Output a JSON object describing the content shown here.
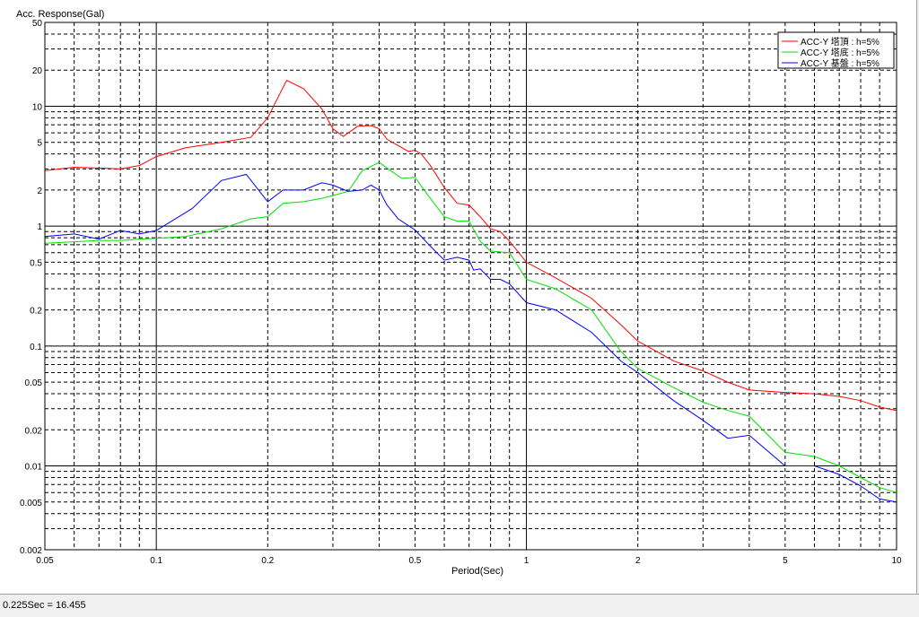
{
  "window": {
    "status_text": "0.225Sec = 16.455"
  },
  "chart_data": {
    "type": "line",
    "title": "",
    "ylabel": "Acc. Response(Gal)",
    "xlabel": "Period(Sec)",
    "x_scale": "log",
    "y_scale": "log",
    "xlim": [
      0.05,
      10
    ],
    "ylim": [
      0.002,
      50
    ],
    "grid": true,
    "legend_position": "top-right",
    "x_tick_labels": [
      "0.05",
      "0.1",
      "0.2",
      "0.5",
      "1",
      "2",
      "5",
      "10"
    ],
    "y_tick_labels": [
      "0.002",
      "0.005",
      "0.01",
      "0.02",
      "0.05",
      "0.1",
      "0.2",
      "0.5",
      "1",
      "2",
      "5",
      "10",
      "20",
      "50"
    ],
    "series": [
      {
        "name": "ACC-Y 塔頂 : h=5%",
        "color": "#ff0000",
        "points": [
          [
            0.05,
            2.9
          ],
          [
            0.06,
            3.1
          ],
          [
            0.07,
            3.05
          ],
          [
            0.08,
            3.0
          ],
          [
            0.09,
            3.2
          ],
          [
            0.1,
            3.8
          ],
          [
            0.12,
            4.5
          ],
          [
            0.15,
            5.0
          ],
          [
            0.18,
            5.5
          ],
          [
            0.2,
            8.0
          ],
          [
            0.225,
            16.455
          ],
          [
            0.25,
            14.0
          ],
          [
            0.28,
            9.5
          ],
          [
            0.3,
            6.5
          ],
          [
            0.32,
            5.6
          ],
          [
            0.35,
            6.8
          ],
          [
            0.38,
            6.9
          ],
          [
            0.4,
            6.5
          ],
          [
            0.42,
            5.3
          ],
          [
            0.45,
            4.7
          ],
          [
            0.48,
            4.2
          ],
          [
            0.5,
            4.3
          ],
          [
            0.52,
            4.0
          ],
          [
            0.55,
            3.2
          ],
          [
            0.6,
            2.1
          ],
          [
            0.65,
            1.55
          ],
          [
            0.7,
            1.5
          ],
          [
            0.75,
            1.2
          ],
          [
            0.8,
            0.95
          ],
          [
            0.85,
            0.9
          ],
          [
            0.9,
            0.75
          ],
          [
            1.0,
            0.5
          ],
          [
            1.2,
            0.37
          ],
          [
            1.5,
            0.25
          ],
          [
            1.8,
            0.15
          ],
          [
            2.0,
            0.11
          ],
          [
            2.5,
            0.075
          ],
          [
            3.0,
            0.062
          ],
          [
            3.5,
            0.05
          ],
          [
            4.0,
            0.043
          ],
          [
            5.0,
            0.041
          ],
          [
            6.0,
            0.04
          ],
          [
            7.0,
            0.038
          ],
          [
            8.0,
            0.035
          ],
          [
            9.0,
            0.031
          ],
          [
            10.0,
            0.029
          ]
        ]
      },
      {
        "name": "ACC-Y 塔底 : h=5%",
        "color": "#00e000",
        "points": [
          [
            0.05,
            0.72
          ],
          [
            0.06,
            0.74
          ],
          [
            0.07,
            0.76
          ],
          [
            0.08,
            0.76
          ],
          [
            0.09,
            0.78
          ],
          [
            0.1,
            0.79
          ],
          [
            0.12,
            0.82
          ],
          [
            0.15,
            0.95
          ],
          [
            0.18,
            1.15
          ],
          [
            0.2,
            1.2
          ],
          [
            0.22,
            1.55
          ],
          [
            0.25,
            1.6
          ],
          [
            0.28,
            1.7
          ],
          [
            0.3,
            1.8
          ],
          [
            0.33,
            1.95
          ],
          [
            0.36,
            2.9
          ],
          [
            0.4,
            3.4
          ],
          [
            0.43,
            2.9
          ],
          [
            0.46,
            2.5
          ],
          [
            0.5,
            2.55
          ],
          [
            0.55,
            1.7
          ],
          [
            0.6,
            1.2
          ],
          [
            0.65,
            1.1
          ],
          [
            0.7,
            1.1
          ],
          [
            0.75,
            0.75
          ],
          [
            0.8,
            0.62
          ],
          [
            0.9,
            0.6
          ],
          [
            1.0,
            0.36
          ],
          [
            1.2,
            0.3
          ],
          [
            1.5,
            0.2
          ],
          [
            1.8,
            0.09
          ],
          [
            2.0,
            0.065
          ],
          [
            2.5,
            0.045
          ],
          [
            3.0,
            0.034
          ],
          [
            3.5,
            0.029
          ],
          [
            4.0,
            0.026
          ],
          [
            5.0,
            0.013
          ],
          [
            6.0,
            0.012
          ],
          [
            7.0,
            0.01
          ],
          [
            8.0,
            0.008
          ],
          [
            9.0,
            0.0066
          ],
          [
            10.0,
            0.006
          ]
        ]
      },
      {
        "name": "ACC-Y 基盤 : h=5%",
        "color": "#0000ff",
        "points": [
          [
            0.05,
            0.82
          ],
          [
            0.06,
            0.86
          ],
          [
            0.07,
            0.78
          ],
          [
            0.08,
            0.92
          ],
          [
            0.09,
            0.86
          ],
          [
            0.1,
            0.92
          ],
          [
            0.125,
            1.4
          ],
          [
            0.15,
            2.4
          ],
          [
            0.175,
            2.7
          ],
          [
            0.2,
            1.6
          ],
          [
            0.22,
            2.0
          ],
          [
            0.25,
            2.0
          ],
          [
            0.28,
            2.3
          ],
          [
            0.3,
            2.2
          ],
          [
            0.33,
            1.95
          ],
          [
            0.36,
            2.0
          ],
          [
            0.38,
            2.2
          ],
          [
            0.4,
            2.0
          ],
          [
            0.42,
            1.5
          ],
          [
            0.45,
            1.15
          ],
          [
            0.5,
            0.93
          ],
          [
            0.55,
            0.68
          ],
          [
            0.6,
            0.52
          ],
          [
            0.65,
            0.55
          ],
          [
            0.7,
            0.52
          ],
          [
            0.72,
            0.43
          ],
          [
            0.75,
            0.44
          ],
          [
            0.8,
            0.36
          ],
          [
            0.85,
            0.36
          ],
          [
            0.9,
            0.33
          ],
          [
            1.0,
            0.23
          ],
          [
            1.2,
            0.2
          ],
          [
            1.5,
            0.13
          ],
          [
            1.8,
            0.075
          ],
          [
            2.0,
            0.06
          ],
          [
            2.5,
            0.035
          ],
          [
            3.0,
            0.024
          ],
          [
            3.5,
            0.017
          ],
          [
            4.0,
            0.018
          ],
          [
            5.0,
            0.01
          ],
          [
            6.0,
            0.01
          ],
          [
            7.0,
            0.0085
          ],
          [
            8.0,
            0.0068
          ],
          [
            9.0,
            0.0053
          ],
          [
            10.0,
            0.005
          ]
        ]
      }
    ]
  }
}
